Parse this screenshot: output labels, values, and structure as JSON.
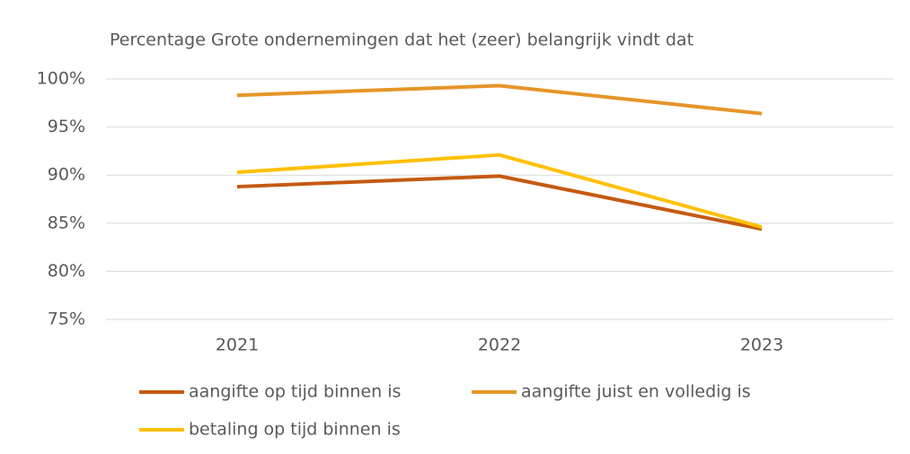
{
  "chart_data": {
    "type": "line",
    "title": "Percentage Grote ondernemingen dat het (zeer) belangrijk vindt dat",
    "categories": [
      "2021",
      "2022",
      "2023"
    ],
    "series": [
      {
        "name": "aangifte op tijd binnen is",
        "color": "#c55a11",
        "values": [
          88.8,
          89.9,
          84.4
        ]
      },
      {
        "name": "aangifte juist en volledig is",
        "color": "#e69528",
        "values": [
          98.3,
          99.3,
          96.4
        ]
      },
      {
        "name": "betaling op tijd binnen is",
        "color": "#ffc000",
        "values": [
          90.3,
          92.1,
          84.6
        ]
      }
    ],
    "ylim": [
      75,
      100
    ],
    "yticks": [
      {
        "value": 75,
        "label": "75%"
      },
      {
        "value": 80,
        "label": "80%"
      },
      {
        "value": 85,
        "label": "85%"
      },
      {
        "value": 90,
        "label": "90%"
      },
      {
        "value": 95,
        "label": "95%"
      },
      {
        "value": 100,
        "label": "100%"
      }
    ],
    "grid": true,
    "legend": "bottom"
  }
}
